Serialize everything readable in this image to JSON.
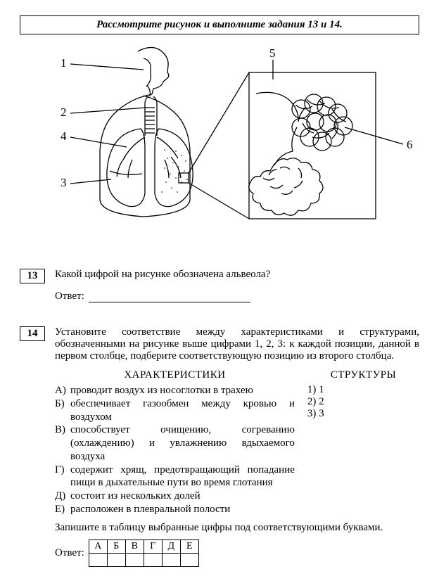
{
  "header": "Рассмотрите рисунок и выполните задания 13 и 14.",
  "diagram": {
    "labels": [
      "1",
      "2",
      "3",
      "4",
      "5",
      "6"
    ],
    "stroke": "#000000",
    "fill": "#ffffff"
  },
  "q13": {
    "num": "13",
    "text": "Какой цифрой на рисунке обозначена альвеола?",
    "answer_label": "Ответ:"
  },
  "q14": {
    "num": "14",
    "text": "Установите соответствие между характеристиками и структурами, обозначенными на рисунке выше цифрами 1, 2, 3: к каждой позиции, данной в первом столбце, подберите соответствующую позицию из второго столбца.",
    "col1_head": "ХАРАКТЕРИСТИКИ",
    "col2_head": "СТРУКТУРЫ",
    "characteristics": [
      {
        "l": "А)",
        "t": "проводит воздух из носоглотки в трахею"
      },
      {
        "l": "Б)",
        "t": "обеспечивает газообмен между кровью и воздухом"
      },
      {
        "l": "В)",
        "t": "способствует очищению, согреванию (охлаждению) и увлажнению вдыхаемого воздуха"
      },
      {
        "l": "Г)",
        "t": "содержит хрящ, предотвращающий попадание пищи в дыхательные пути во время глотания"
      },
      {
        "l": "Д)",
        "t": "состоит из нескольких долей"
      },
      {
        "l": "Е)",
        "t": "расположен в плевральной полости"
      }
    ],
    "structures": [
      {
        "l": "1)",
        "t": "1"
      },
      {
        "l": "2)",
        "t": "2"
      },
      {
        "l": "3)",
        "t": "3"
      }
    ],
    "instr": "Запишите в таблицу выбранные цифры под соответствующими буквами.",
    "answer_label": "Ответ:",
    "letters": [
      "А",
      "Б",
      "В",
      "Г",
      "Д",
      "Е"
    ]
  }
}
